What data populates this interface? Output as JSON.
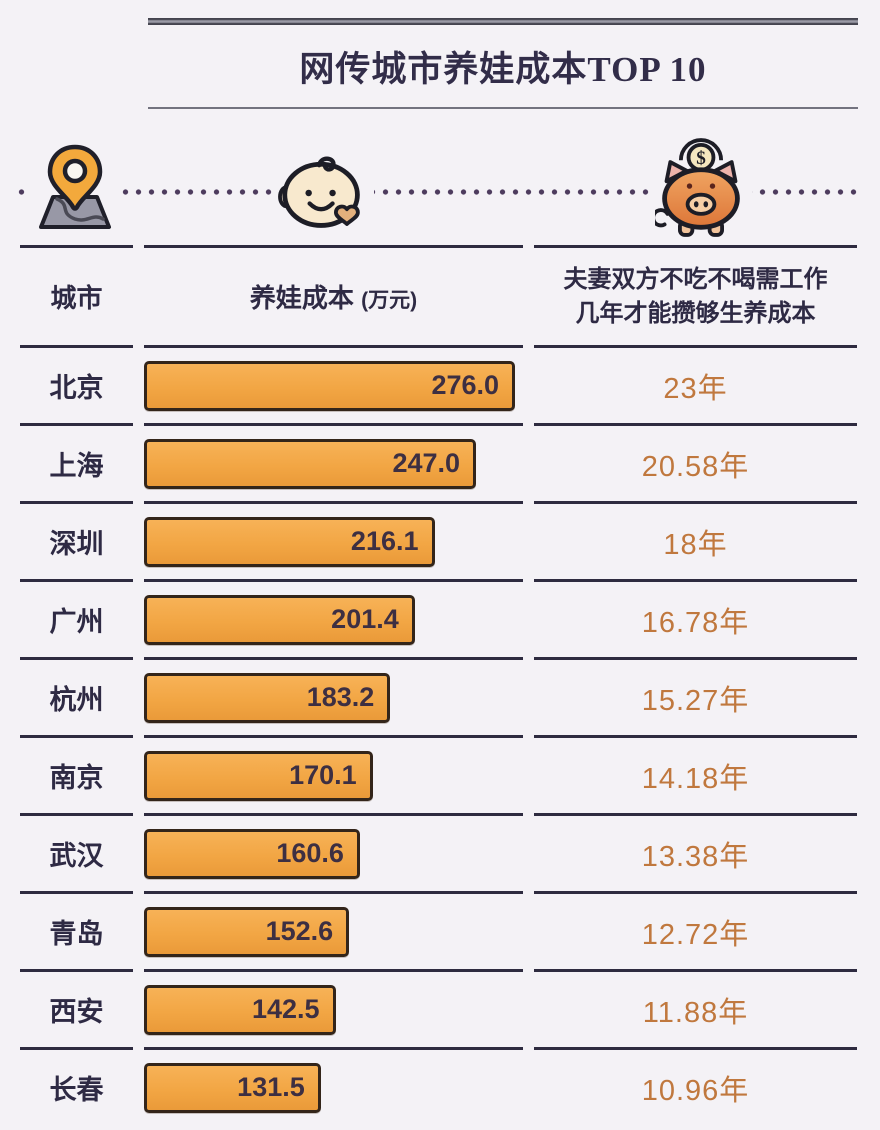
{
  "title": {
    "text": "网传城市养娃成本TOP 10"
  },
  "icons": {
    "map_pin": "map-pin-on-map",
    "baby": "baby-face-with-heart",
    "piggy_bank": "piggy-bank-with-dollar-coin"
  },
  "colors": {
    "background": "#f4f2f6",
    "separator_line": "#2e2b40",
    "bar_fill": "#f2a644",
    "bar_border": "#33251a",
    "bar_value_text": "#3d2f42",
    "city_text": "#2e2a44",
    "years_text": "#c0783e",
    "dotted_divider": "#4d3c5e"
  },
  "table": {
    "headers": {
      "city": "城市",
      "cost_label": "养娃成本",
      "cost_unit": "(万元)",
      "years_line1": "夫妻双方不吃不喝需工作",
      "years_line2": "几年才能攒够生养成本"
    },
    "max_cost": 276.0,
    "rows": [
      {
        "city": "北京",
        "cost": "276.0",
        "cost_value": 276.0,
        "years": "23年"
      },
      {
        "city": "上海",
        "cost": "247.0",
        "cost_value": 247.0,
        "years": "20.58年"
      },
      {
        "city": "深圳",
        "cost": "216.1",
        "cost_value": 216.1,
        "years": "18年"
      },
      {
        "city": "广州",
        "cost": "201.4",
        "cost_value": 201.4,
        "years": "16.78年"
      },
      {
        "city": "杭州",
        "cost": "183.2",
        "cost_value": 183.2,
        "years": "15.27年"
      },
      {
        "city": "南京",
        "cost": "170.1",
        "cost_value": 170.1,
        "years": "14.18年"
      },
      {
        "city": "武汉",
        "cost": "160.6",
        "cost_value": 160.6,
        "years": "13.38年"
      },
      {
        "city": "青岛",
        "cost": "152.6",
        "cost_value": 152.6,
        "years": "12.72年"
      },
      {
        "city": "西安",
        "cost": "142.5",
        "cost_value": 142.5,
        "years": "11.88年"
      },
      {
        "city": "长春",
        "cost": "131.5",
        "cost_value": 131.5,
        "years": "10.96年"
      }
    ]
  },
  "chart_data": {
    "type": "bar",
    "orientation": "horizontal",
    "title": "网传城市养娃成本TOP 10",
    "categories": [
      "北京",
      "上海",
      "深圳",
      "广州",
      "杭州",
      "南京",
      "武汉",
      "青岛",
      "西安",
      "长春"
    ],
    "series": [
      {
        "name": "养娃成本 (万元)",
        "values": [
          276.0,
          247.0,
          216.1,
          201.4,
          183.2,
          170.1,
          160.6,
          152.6,
          142.5,
          131.5
        ]
      },
      {
        "name": "夫妻双方不吃不喝需工作几年才能攒够生养成本 (年)",
        "values": [
          23,
          20.58,
          18,
          16.78,
          15.27,
          14.18,
          13.38,
          12.72,
          11.88,
          10.96
        ]
      }
    ],
    "xlabel": "养娃成本 (万元)",
    "ylabel": "城市",
    "xlim": [
      0,
      283
    ],
    "grid": false,
    "legend_position": "none",
    "bar_color": "#f2a644",
    "value_labels": "inside-end"
  }
}
